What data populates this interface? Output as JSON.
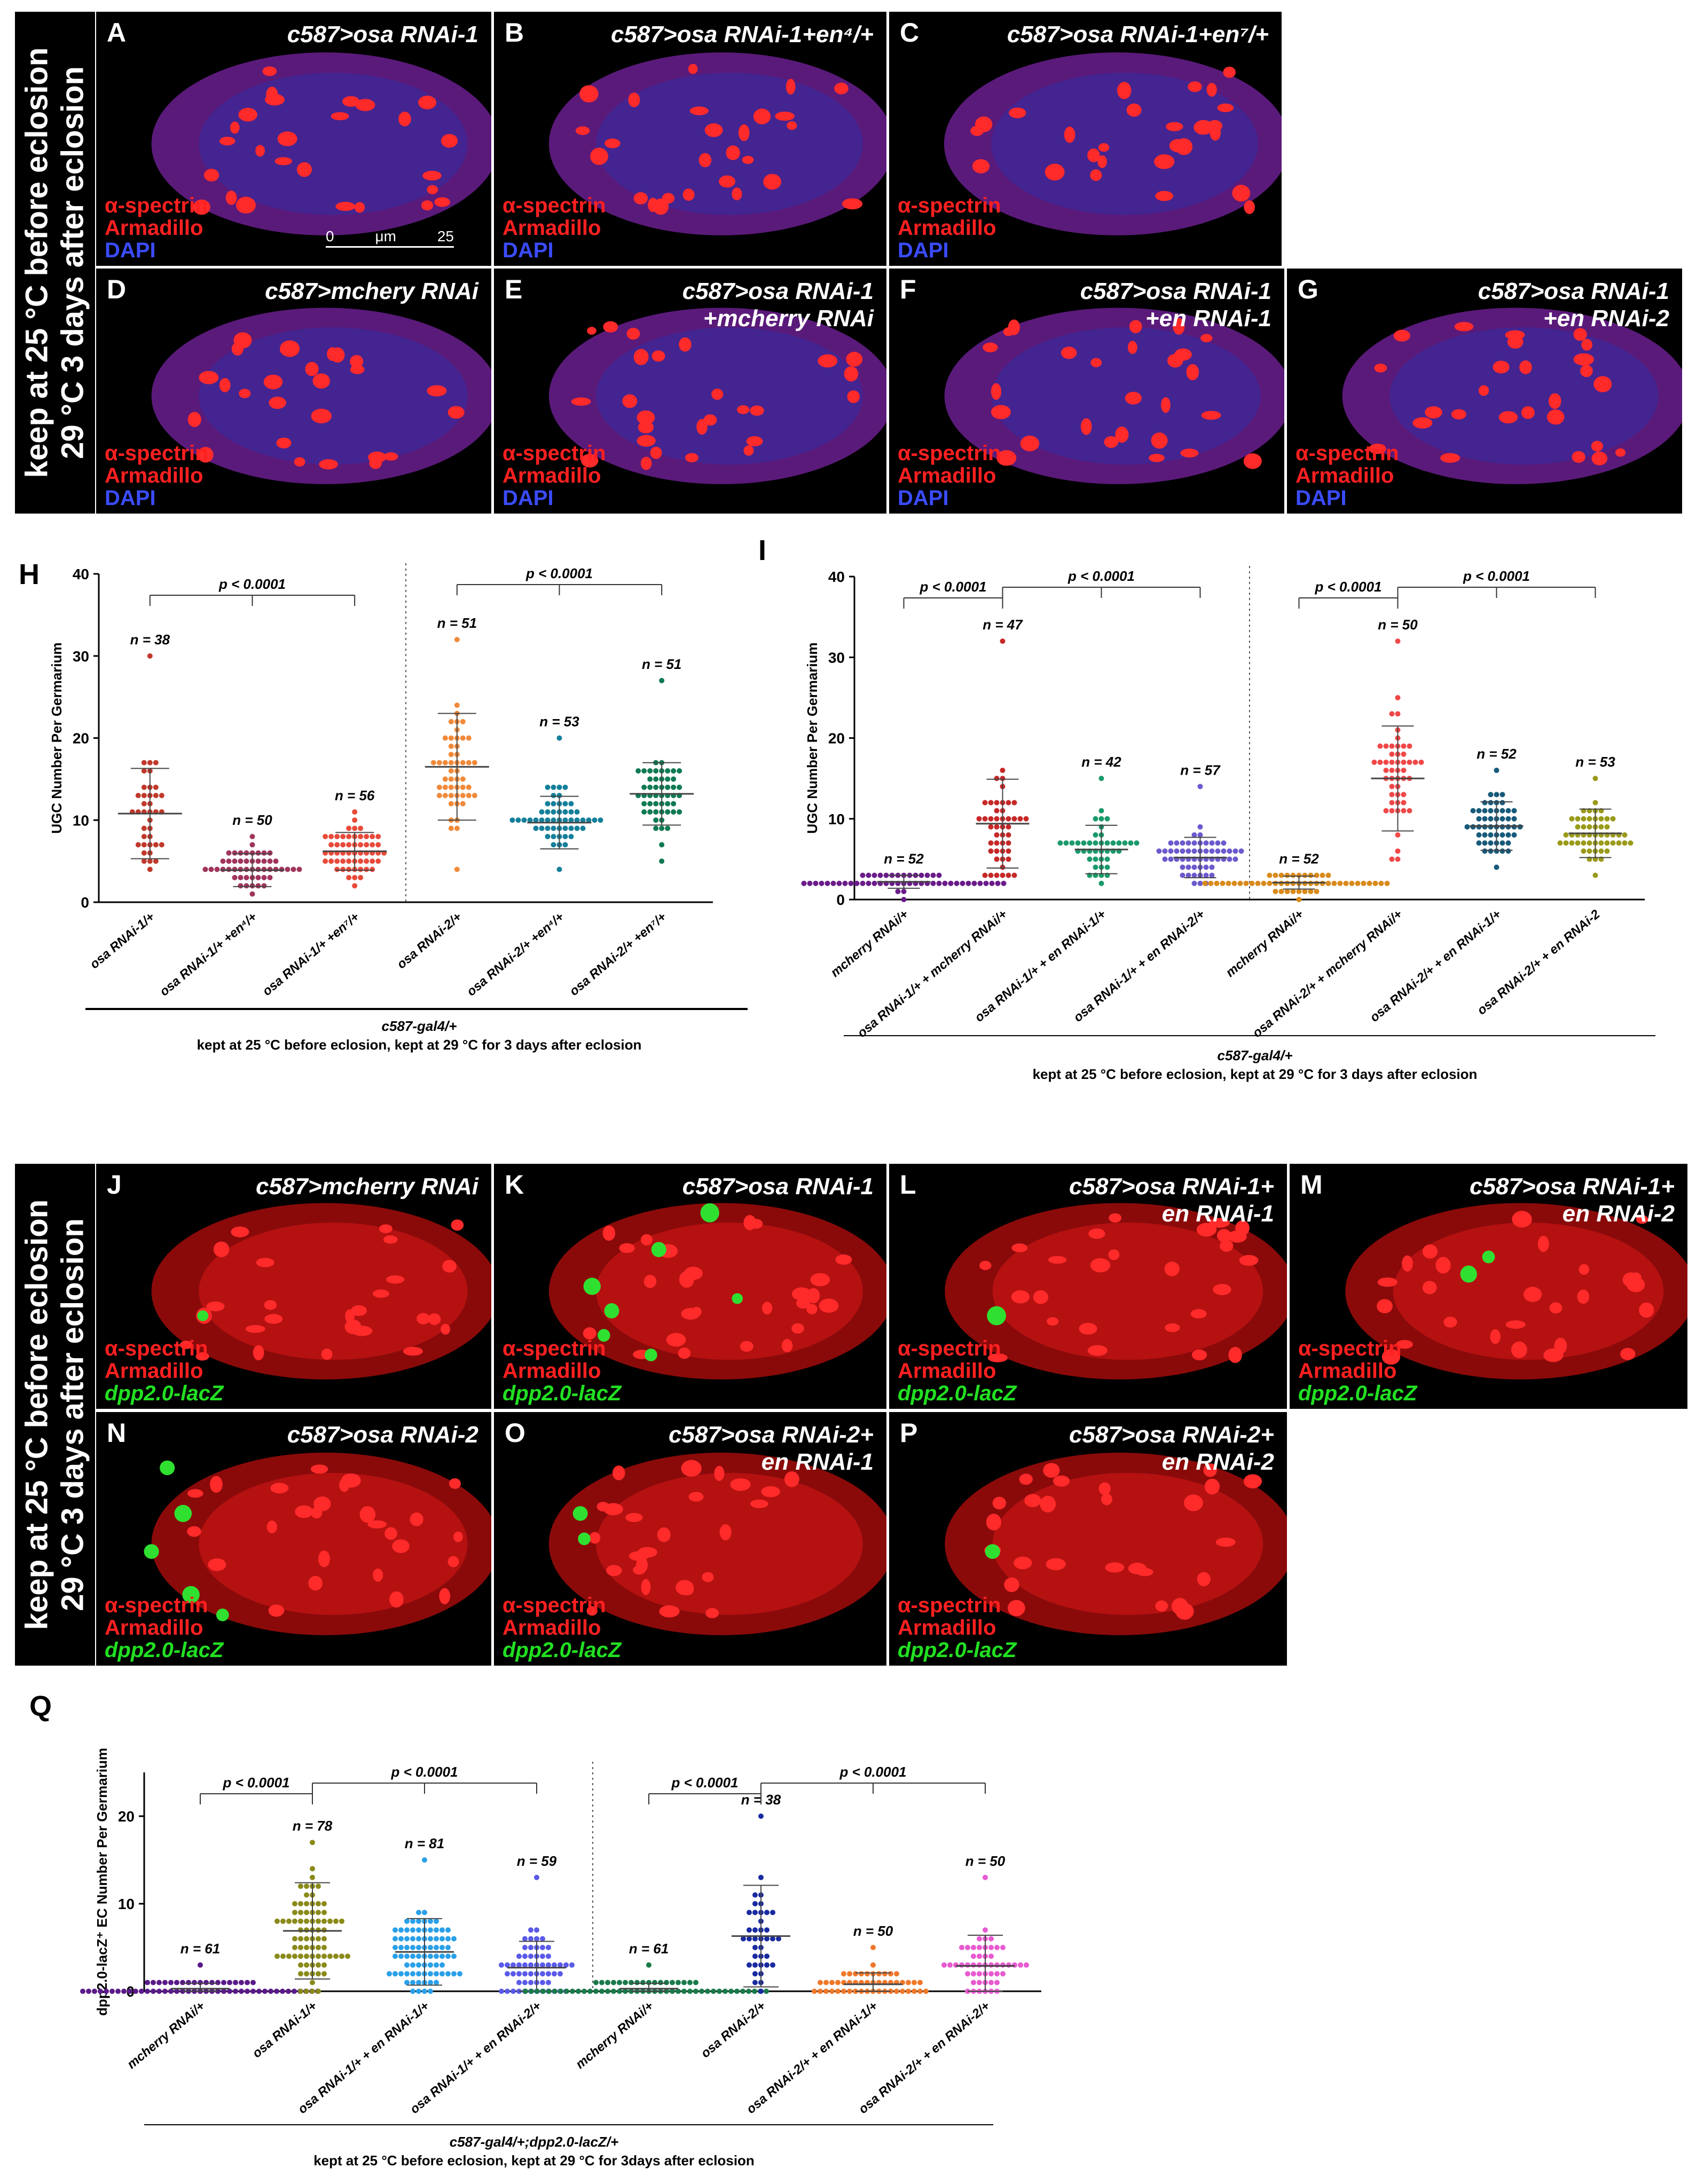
{
  "side_labels": {
    "top": [
      "keep at 25 °C before eclosion",
      "29 °C 3 days after eclosion"
    ],
    "bottom": [
      "keep at 25 °C before eclosion",
      "29 °C 3 days after eclosion"
    ]
  },
  "panels": [
    {
      "id": "A",
      "title": "c587>osa RNAi-1",
      "legend": [
        "α-spectrin",
        "Armadillo",
        "DAPI"
      ],
      "scale": {
        "zero": "0",
        "unit": "μm",
        "max": "25"
      }
    },
    {
      "id": "B",
      "title": "c587>osa RNAi-1+en⁴/+",
      "legend": [
        "α-spectrin",
        "Armadillo",
        "DAPI"
      ]
    },
    {
      "id": "C",
      "title": "c587>osa RNAi-1+en⁷/+",
      "legend": [
        "α-spectrin",
        "Armadillo",
        "DAPI"
      ]
    },
    {
      "id": "D",
      "title": "c587>mchery RNAi",
      "legend": [
        "α-spectrin",
        "Armadillo",
        "DAPI"
      ]
    },
    {
      "id": "E",
      "title": "c587>osa RNAi-1\n+mcherry RNAi",
      "legend": [
        "α-spectrin",
        "Armadillo",
        "DAPI"
      ]
    },
    {
      "id": "F",
      "title": "c587>osa RNAi-1\n+en RNAi-1",
      "legend": [
        "α-spectrin",
        "Armadillo",
        "DAPI"
      ]
    },
    {
      "id": "G",
      "title": "c587>osa RNAi-1\n+en RNAi-2",
      "legend": [
        "α-spectrin",
        "Armadillo",
        "DAPI"
      ]
    },
    {
      "id": "J",
      "title": "c587>mcherry RNAi",
      "legend": [
        "α-spectrin",
        "Armadillo",
        "dpp2.0-lacZ"
      ]
    },
    {
      "id": "K",
      "title": "c587>osa RNAi-1",
      "legend": [
        "α-spectrin",
        "Armadillo",
        "dpp2.0-lacZ"
      ]
    },
    {
      "id": "L",
      "title": "c587>osa RNAi-1+\nen RNAi-1",
      "legend": [
        "α-spectrin",
        "Armadillo",
        "dpp2.0-lacZ"
      ]
    },
    {
      "id": "M",
      "title": "c587>osa RNAi-1+\nen RNAi-2",
      "legend": [
        "α-spectrin",
        "Armadillo",
        "dpp2.0-lacZ"
      ]
    },
    {
      "id": "N",
      "title": "c587>osa RNAi-2",
      "legend": [
        "α-spectrin",
        "Armadillo",
        "dpp2.0-lacZ"
      ]
    },
    {
      "id": "O",
      "title": "c587>osa RNAi-2+\nen RNAi-1",
      "legend": [
        "α-spectrin",
        "Armadillo",
        "dpp2.0-lacZ"
      ]
    },
    {
      "id": "P",
      "title": "c587>osa RNAi-2+\nen RNAi-2",
      "legend": [
        "α-spectrin",
        "Armadillo",
        "dpp2.0-lacZ"
      ]
    }
  ],
  "graph_labels": {
    "H": "H",
    "I": "I",
    "Q": "Q"
  },
  "captions": {
    "H": [
      "c587-gal4/+",
      "kept at 25 °C before eclosion, kept at 29 °C for 3 days after eclosion"
    ],
    "I": [
      "c587-gal4/+",
      "kept at 25 °C before eclosion, kept at 29 °C for 3 days after eclosion"
    ],
    "Q": [
      "c587-gal4/+;dpp2.0-lacZ/+",
      "kept at 25 °C before eclosion, kept at 29 °C for 3days after eclosion"
    ]
  },
  "colors": {
    "red": "#ff2020",
    "blue": "#3a4cff",
    "green": "#22e022"
  },
  "chart_data": [
    {
      "id": "H",
      "type": "scatter",
      "ylabel": "UGC Number Per Germarium",
      "ylim": [
        0,
        40
      ],
      "yticks": [
        0,
        10,
        20,
        30,
        40
      ],
      "groups": [
        {
          "label": "osa RNAi-1/+",
          "n": "n = 38",
          "mean": 10.8,
          "sd": 5.5,
          "min": 4,
          "max": 30,
          "count": 38,
          "color": "#c0392b"
        },
        {
          "label": "osa RNAi-1/+ +en⁴/+",
          "n": "n = 50",
          "mean": 3.9,
          "sd": 2.0,
          "min": 1,
          "max": 8,
          "count": 50,
          "color": "#a0345c"
        },
        {
          "label": "osa RNAi-1/+ +en⁷/+",
          "n": "n = 56",
          "mean": 6.2,
          "sd": 2.3,
          "min": 2,
          "max": 11,
          "count": 56,
          "color": "#e84a3a"
        },
        {
          "label": "osa RNAi-2/+",
          "n": "n = 51",
          "mean": 16.5,
          "sd": 6.5,
          "min": 4,
          "max": 32,
          "count": 51,
          "color": "#f08a3a"
        },
        {
          "label": "osa RNAi-2/+ +en⁴/+",
          "n": "n = 53",
          "mean": 9.7,
          "sd": 3.2,
          "min": 4,
          "max": 20,
          "count": 53,
          "color": "#137f9a"
        },
        {
          "label": "osa RNAi-2/+ +en⁷/+",
          "n": "n = 51",
          "mean": 13.2,
          "sd": 3.8,
          "min": 5,
          "max": 27,
          "count": 51,
          "color": "#0f7a52"
        }
      ],
      "comparisons": [
        {
          "text": "p < 0.0001",
          "from": 0,
          "to": [
            1,
            2
          ]
        },
        {
          "text": "p < 0.0001",
          "from": 3,
          "to": [
            4,
            5
          ]
        }
      ],
      "divider_after": 2
    },
    {
      "id": "I",
      "type": "scatter",
      "ylabel": "UGC Number Per Germarium",
      "ylim": [
        0,
        40
      ],
      "yticks": [
        0,
        10,
        20,
        30,
        40
      ],
      "groups": [
        {
          "label": "mcherry RNAi/+",
          "n": "n = 52",
          "mean": 2.2,
          "sd": 0.8,
          "min": 0,
          "max": 3,
          "count": 52,
          "color": "#6a1b8a"
        },
        {
          "label": "osa RNAi-1/+ + mcherry RNAi/+",
          "n": "n = 47",
          "mean": 9.4,
          "sd": 5.5,
          "min": 3,
          "max": 32,
          "count": 47,
          "color": "#c62828"
        },
        {
          "label": "osa RNAi-1/+ + en RNAi-1/+",
          "n": "n = 42",
          "mean": 6.2,
          "sd": 3.0,
          "min": 2,
          "max": 15,
          "count": 42,
          "color": "#1a9a6a"
        },
        {
          "label": "osa RNAi-1/+ + en RNAi-2/+",
          "n": "n = 57",
          "mean": 5.2,
          "sd": 2.5,
          "min": 2,
          "max": 14,
          "count": 57,
          "color": "#6a5acd"
        },
        {
          "label": "mcherry RNAi/+",
          "n": "n = 52",
          "mean": 2.1,
          "sd": 0.8,
          "min": 0,
          "max": 3,
          "count": 52,
          "color": "#d98a1a"
        },
        {
          "label": "osa RNAi-2/+ + mcherry RNAi/+",
          "n": "n = 50",
          "mean": 15.0,
          "sd": 6.5,
          "min": 5,
          "max": 32,
          "count": 50,
          "color": "#f04848"
        },
        {
          "label": "osa RNAi-2/+ + en RNAi-1/+",
          "n": "n = 52",
          "mean": 9.1,
          "sd": 3.0,
          "min": 4,
          "max": 16,
          "count": 52,
          "color": "#175a7a"
        },
        {
          "label": "osa RNAi-2/+ + en RNAi-2",
          "n": "n = 53",
          "mean": 8.2,
          "sd": 3.0,
          "min": 3,
          "max": 15,
          "count": 53,
          "color": "#9a9a1a"
        }
      ],
      "comparisons": [
        {
          "text": "p < 0.0001",
          "from": 1,
          "to": [
            0
          ]
        },
        {
          "text": "p < 0.0001",
          "from": 1,
          "to": [
            2,
            3
          ]
        },
        {
          "text": "p < 0.0001",
          "from": 5,
          "to": [
            4
          ]
        },
        {
          "text": "p < 0.0001",
          "from": 5,
          "to": [
            6,
            7
          ]
        }
      ],
      "divider_after": 3
    },
    {
      "id": "Q",
      "type": "scatter",
      "ylabel": "dpp2.0-lacZ⁺ EC Number Per Germarium",
      "ylim": [
        0,
        25
      ],
      "yticks": [
        0,
        10,
        20
      ],
      "groups": [
        {
          "label": "mcherry RNAi/+",
          "n": "n = 61",
          "mean": 0.3,
          "sd": 0.6,
          "min": 0,
          "max": 3,
          "count": 61,
          "color": "#5a1a8a"
        },
        {
          "label": "osa RNAi-1/+",
          "n": "n = 78",
          "mean": 6.9,
          "sd": 5.5,
          "min": 0,
          "max": 17,
          "count": 78,
          "color": "#8a8a1a"
        },
        {
          "label": "osa RNAi-1/+ + en RNAi-1/+",
          "n": "n = 81",
          "mean": 4.5,
          "sd": 3.8,
          "min": 0,
          "max": 15,
          "count": 81,
          "color": "#2aa0e8"
        },
        {
          "label": "osa RNAi-1/+ + en RNAi-2/+",
          "n": "n = 59",
          "mean": 2.7,
          "sd": 3.0,
          "min": 0,
          "max": 13,
          "count": 59,
          "color": "#5a5ae8"
        },
        {
          "label": "mcherry RNAi/+",
          "n": "n = 61",
          "mean": 0.3,
          "sd": 0.6,
          "min": 0,
          "max": 3,
          "count": 61,
          "color": "#1a7a4a"
        },
        {
          "label": "osa RNAi-2/+",
          "n": "n = 38",
          "mean": 6.3,
          "sd": 5.8,
          "min": 0,
          "max": 20,
          "count": 38,
          "color": "#1a2aa0"
        },
        {
          "label": "osa RNAi-2/+ + en RNAi-1/+",
          "n": "n = 50",
          "mean": 0.8,
          "sd": 1.3,
          "min": 0,
          "max": 5,
          "count": 50,
          "color": "#f0782a"
        },
        {
          "label": "osa RNAi-2/+ + en RNAi-2/+",
          "n": "n = 50",
          "mean": 2.9,
          "sd": 3.5,
          "min": 0,
          "max": 13,
          "count": 50,
          "color": "#e85ad0"
        }
      ],
      "comparisons": [
        {
          "text": "p < 0.0001",
          "from": 1,
          "to": [
            0
          ]
        },
        {
          "text": "p < 0.0001",
          "from": 1,
          "to": [
            2,
            3
          ]
        },
        {
          "text": "p < 0.0001",
          "from": 5,
          "to": [
            4
          ]
        },
        {
          "text": "p < 0.0001",
          "from": 5,
          "to": [
            6,
            7
          ]
        }
      ],
      "divider_after": 3
    }
  ]
}
